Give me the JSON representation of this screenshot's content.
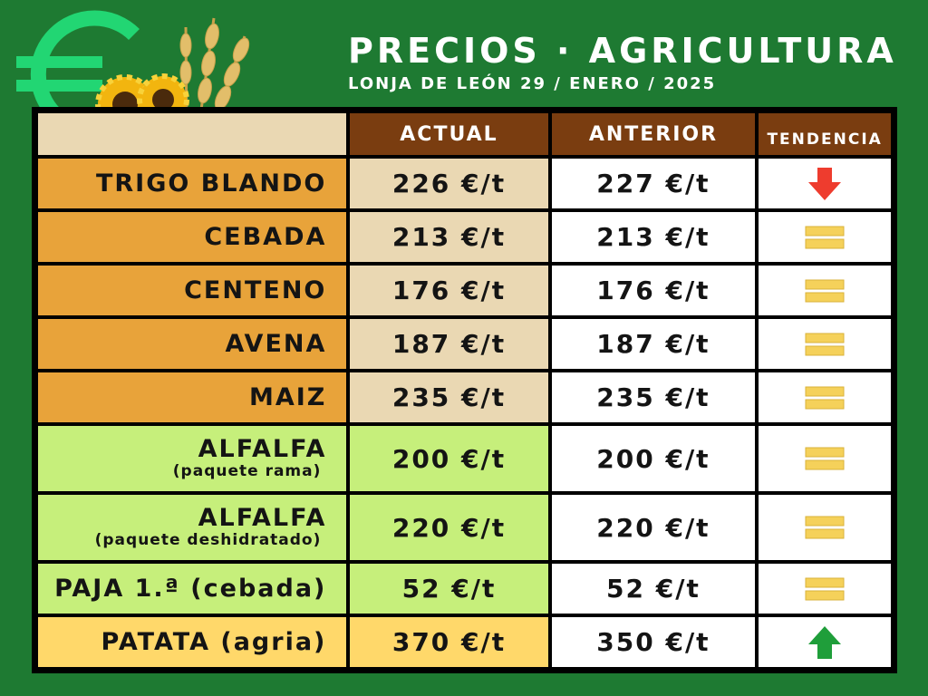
{
  "header": {
    "title": "PRECIOS · AGRICULTURA",
    "subtitle": "LONJA DE LEÓN  29 / ENERO / 2025"
  },
  "columns": {
    "current": "ACTUAL",
    "previous": "ANTERIOR",
    "trend": "TENDENCIA"
  },
  "colors": {
    "background": "#1e7a32",
    "header": "#7a3d10",
    "cereal": "#e8a33a",
    "forage": "#c6ef7b",
    "potato": "#ffd86a",
    "down": "#ee3c2e",
    "up": "#1f9e3a",
    "equal": "#f5d15a"
  },
  "icons": [
    "euro-icon",
    "sunflower-icon",
    "wheat-icon",
    "arrow-down-icon",
    "equal-icon",
    "arrow-up-icon"
  ],
  "rows": [
    {
      "name": "TRIGO BLANDO",
      "sub": "",
      "current": "226 €/t",
      "previous": "227 €/t",
      "trend": "down",
      "group": "cereal"
    },
    {
      "name": "CEBADA",
      "sub": "",
      "current": "213 €/t",
      "previous": "213 €/t",
      "trend": "equal",
      "group": "cereal"
    },
    {
      "name": "CENTENO",
      "sub": "",
      "current": "176 €/t",
      "previous": "176 €/t",
      "trend": "equal",
      "group": "cereal"
    },
    {
      "name": "AVENA",
      "sub": "",
      "current": "187 €/t",
      "previous": "187 €/t",
      "trend": "equal",
      "group": "cereal"
    },
    {
      "name": "MAIZ",
      "sub": "",
      "current": "235 €/t",
      "previous": "235 €/t",
      "trend": "equal",
      "group": "cereal"
    },
    {
      "name": "ALFALFA",
      "sub": "(paquete rama)",
      "current": "200 €/t",
      "previous": "200 €/t",
      "trend": "equal",
      "group": "forage"
    },
    {
      "name": "ALFALFA",
      "sub": "(paquete deshidratado)",
      "current": "220 €/t",
      "previous": "220 €/t",
      "trend": "equal",
      "group": "forage"
    },
    {
      "name": "PAJA 1.ª (cebada)",
      "sub": "",
      "current": "52 €/t",
      "previous": "52 €/t",
      "trend": "equal",
      "group": "forage"
    },
    {
      "name": "PATATA (agria)",
      "sub": "",
      "current": "370 €/t",
      "previous": "350 €/t",
      "trend": "up",
      "group": "potato"
    }
  ]
}
